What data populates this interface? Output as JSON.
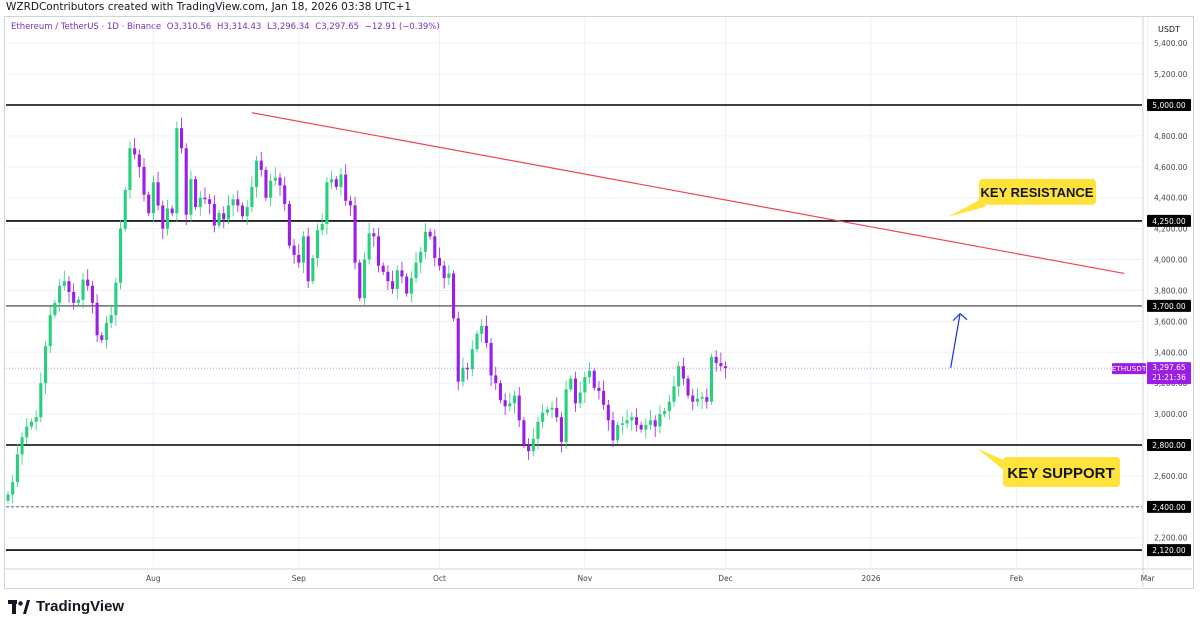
{
  "header": {
    "created_by": "WZRDContributors created with TradingView.com, Jan 18, 2026 03:38 UTC+1",
    "symbol": "Ethereum / TetherUS · 1D · Binance",
    "open": "O3,310.56",
    "high": "H3,314.43",
    "low": "L3,296.34",
    "close": "C3,297.65",
    "change": "−12.91 (−0.39%)"
  },
  "footer": {
    "brand": "TradingView"
  },
  "colors": {
    "up": "#26d07c",
    "down": "#9b1de6",
    "trendline": "#f0435a",
    "arrow": "#1e2ee0",
    "callout": "#ffe23b",
    "price_line": "#c24cf2"
  },
  "chart_data": {
    "type": "candlestick",
    "currency": "USDT",
    "ylim": [
      2050,
      5550
    ],
    "y_ticks": [
      2200,
      2400,
      2600,
      2800,
      3000,
      3200,
      3400,
      3600,
      3800,
      4000,
      4200,
      4400,
      4600,
      4800,
      5000,
      5200,
      5400
    ],
    "y_tick_labels": [
      "2,200.00",
      "2,400.00",
      "2,600.00",
      "2,800.00",
      "3,000.00",
      "3,200.00",
      "3,400.00",
      "3,600.00",
      "3,800.00",
      "4,000.00",
      "4,200.00",
      "4,400.00",
      "4,600.00",
      "4,800.00",
      "5,000.00",
      "5,200.00",
      "5,400.00"
    ],
    "x_labels": [
      "Aug",
      "Sep",
      "Oct",
      "Nov",
      "Dec",
      "2026",
      "Feb",
      "Mar"
    ],
    "x_label_dates": [
      "2025-08-01",
      "2025-09-01",
      "2025-10-01",
      "2025-11-01",
      "2025-12-01",
      "2026-01-01",
      "2026-02-01",
      "2026-03-01"
    ],
    "first_date": "2025-07-01",
    "last_date": "2026-01-18",
    "closes": [
      2480,
      2560,
      2740,
      2850,
      2920,
      2950,
      2980,
      3200,
      3440,
      3640,
      3720,
      3830,
      3860,
      3790,
      3720,
      3740,
      3870,
      3830,
      3720,
      3510,
      3480,
      3590,
      3640,
      3850,
      4200,
      4450,
      4720,
      4680,
      4600,
      4420,
      4300,
      4500,
      4350,
      4200,
      4330,
      4300,
      4850,
      4720,
      4290,
      4520,
      4340,
      4400,
      4390,
      4360,
      4220,
      4300,
      4260,
      4350,
      4390,
      4350,
      4280,
      4340,
      4470,
      4640,
      4580,
      4400,
      4510,
      4530,
      4480,
      4360,
      4090,
      4030,
      3980,
      4150,
      3860,
      4010,
      4190,
      4230,
      4500,
      4520,
      4470,
      4550,
      4380,
      4350,
      3980,
      3750,
      4000,
      4170,
      4150,
      3960,
      3920,
      3860,
      3810,
      3930,
      3890,
      3780,
      3880,
      3980,
      4050,
      4180,
      4150,
      4010,
      3960,
      3880,
      3910,
      3620,
      3210,
      3300,
      3290,
      3420,
      3520,
      3570,
      3460,
      3250,
      3200,
      3090,
      3050,
      3070,
      3120,
      2960,
      2800,
      2760,
      2840,
      2950,
      3010,
      3030,
      3040,
      2980,
      2820,
      3160,
      3230,
      3070,
      3140,
      3240,
      3280,
      3170,
      3150,
      3060,
      2960,
      2830,
      2930,
      2940,
      2960,
      2980,
      2930,
      2900,
      2930,
      2960,
      2920,
      3000,
      3020,
      3080,
      3180,
      3310,
      3230,
      3120,
      3080,
      3100,
      3110,
      3080,
      3370,
      3330,
      3310,
      3297.65
    ],
    "price_levels": [
      {
        "label": "5,000.00",
        "value": 5000,
        "style": "solid-bold"
      },
      {
        "label": "4,250.00",
        "value": 4250,
        "style": "solid-bold"
      },
      {
        "label": "3,700.00",
        "value": 3700,
        "style": "solid-thin"
      },
      {
        "label": "2,800.00",
        "value": 2800,
        "style": "solid-bold"
      },
      {
        "label": "2,400.00",
        "value": 2400,
        "style": "dashed"
      },
      {
        "label": "2,120.00",
        "value": 2120,
        "style": "solid-bold"
      }
    ],
    "current_price": {
      "label": "3,297.65",
      "symbol": "ETHUSDT",
      "countdown": "21:21:36",
      "value": 3297.65
    },
    "trendline": {
      "start": {
        "date": "2025-08-22",
        "value": 4950
      },
      "end": {
        "date": "2026-02-24",
        "value": 3910
      }
    },
    "arrow": {
      "start": {
        "date": "2026-01-18",
        "value": 3300
      },
      "end": {
        "date": "2026-01-20",
        "value": 3650
      }
    },
    "annotations": [
      {
        "text": "KEY RESISTANCE",
        "anchor_price": 4250
      },
      {
        "text": "KEY SUPPORT",
        "anchor_price": 2800
      }
    ]
  }
}
